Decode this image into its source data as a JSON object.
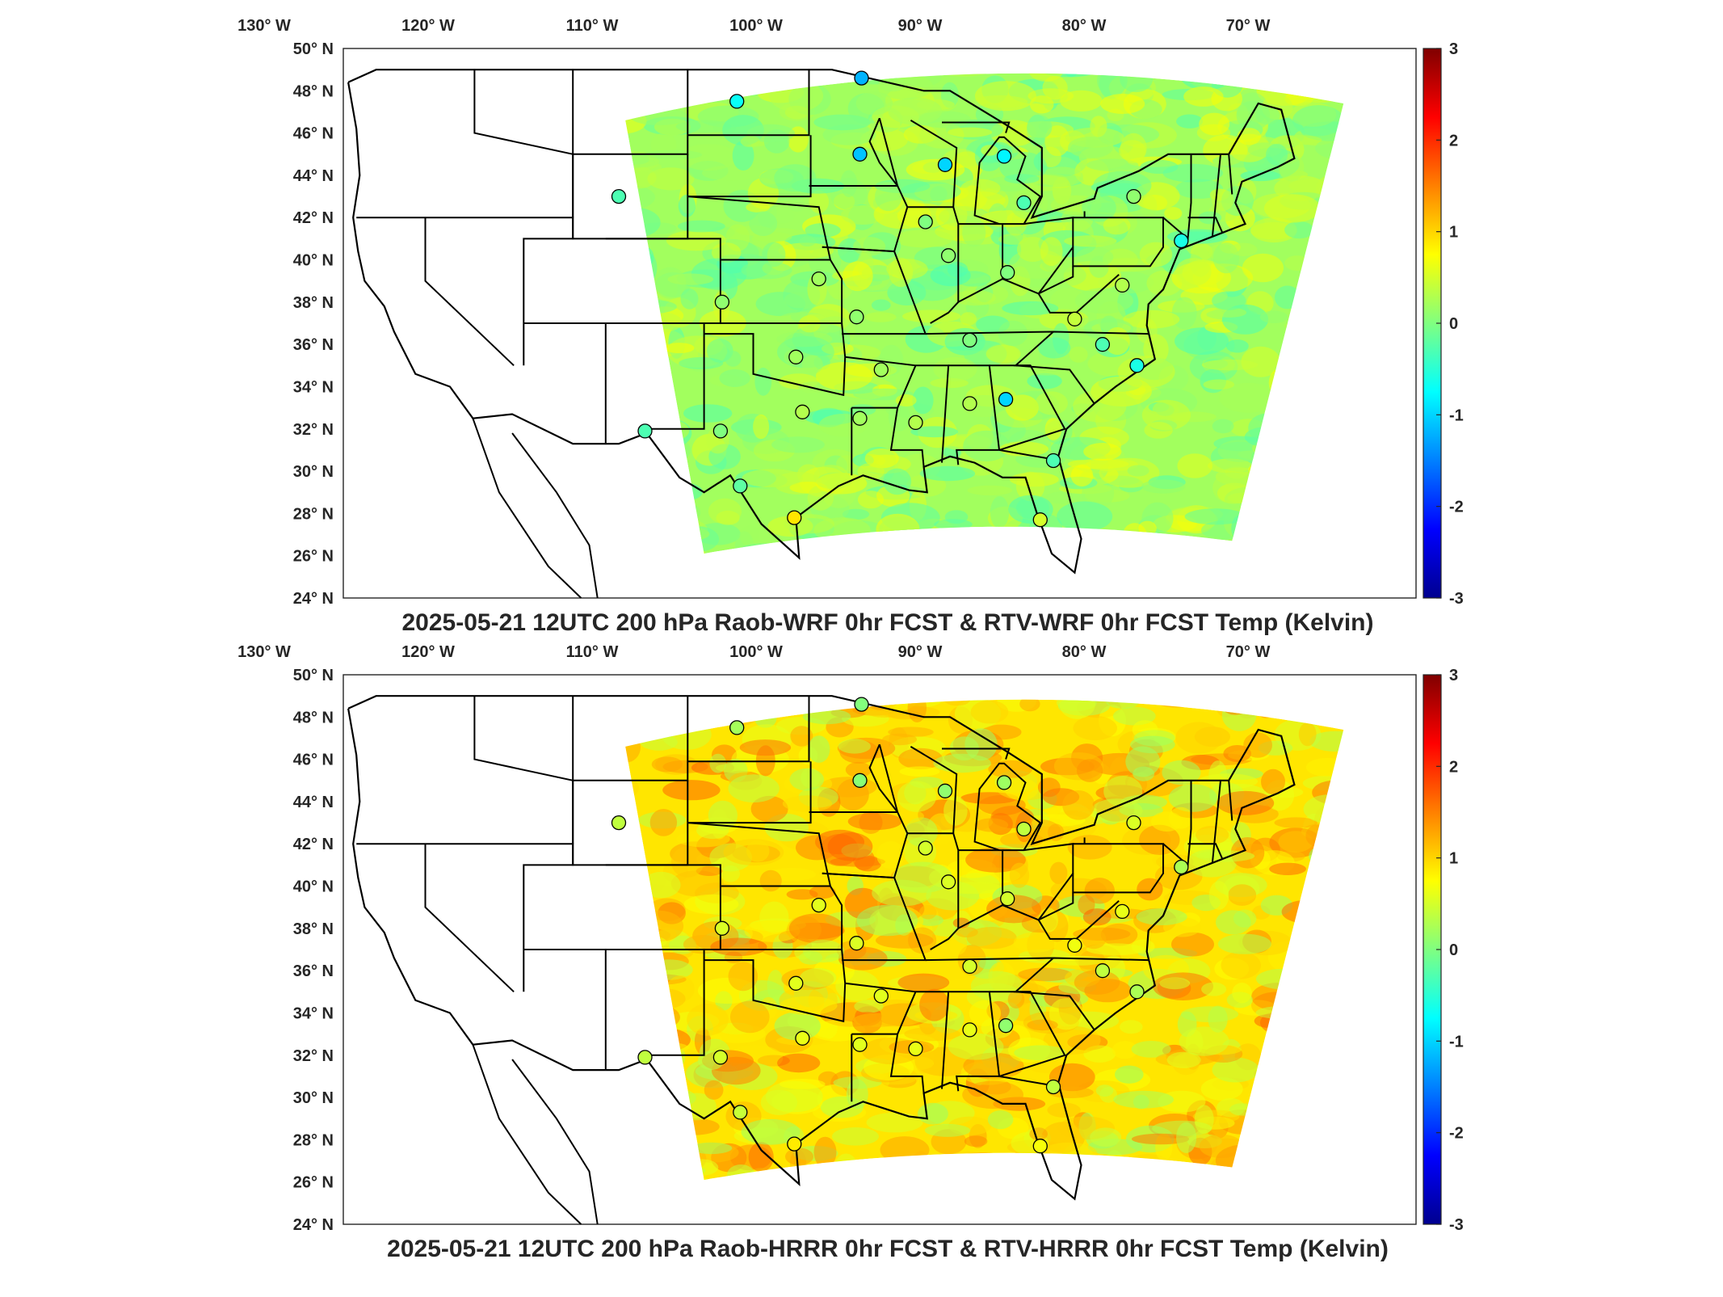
{
  "panels": [
    {
      "id": "wrf",
      "title": "2025-05-21 12UTC 200 hPa Raob-WRF 0hr FCST & RTV-WRF 0hr FCST Temp (Kelvin)",
      "field_tone": "near-zero (green/cyan) differences",
      "colorbar": {
        "min": -3,
        "max": 3,
        "ticks": [
          "3",
          "2",
          "1",
          "0",
          "-1",
          "-2",
          "-3"
        ]
      }
    },
    {
      "id": "hrrr",
      "title": "2025-05-21 12UTC 200 hPa Raob-HRRR 0hr FCST & RTV-HRRR 0hr FCST Temp (Kelvin)",
      "field_tone": "positive (yellow/orange) differences",
      "colorbar": {
        "min": -3,
        "max": 3,
        "ticks": [
          "3",
          "2",
          "1",
          "0",
          "-1",
          "-2",
          "-3"
        ]
      }
    }
  ],
  "lon_labels": [
    "130° W",
    "120° W",
    "110° W",
    "100° W",
    "90° W",
    "80° W",
    "70° W"
  ],
  "lat_labels": [
    "50° N",
    "48° N",
    "46° N",
    "44° N",
    "42° N",
    "40° N",
    "38° N",
    "36° N",
    "34° N",
    "32° N",
    "30° N",
    "28° N",
    "26° N",
    "24° N"
  ],
  "colormap": [
    "#00008f",
    "#0000ff",
    "#0080ff",
    "#00ffff",
    "#80ff80",
    "#ffff00",
    "#ff8000",
    "#ff0000",
    "#800000"
  ],
  "raob_station_count": 33
}
